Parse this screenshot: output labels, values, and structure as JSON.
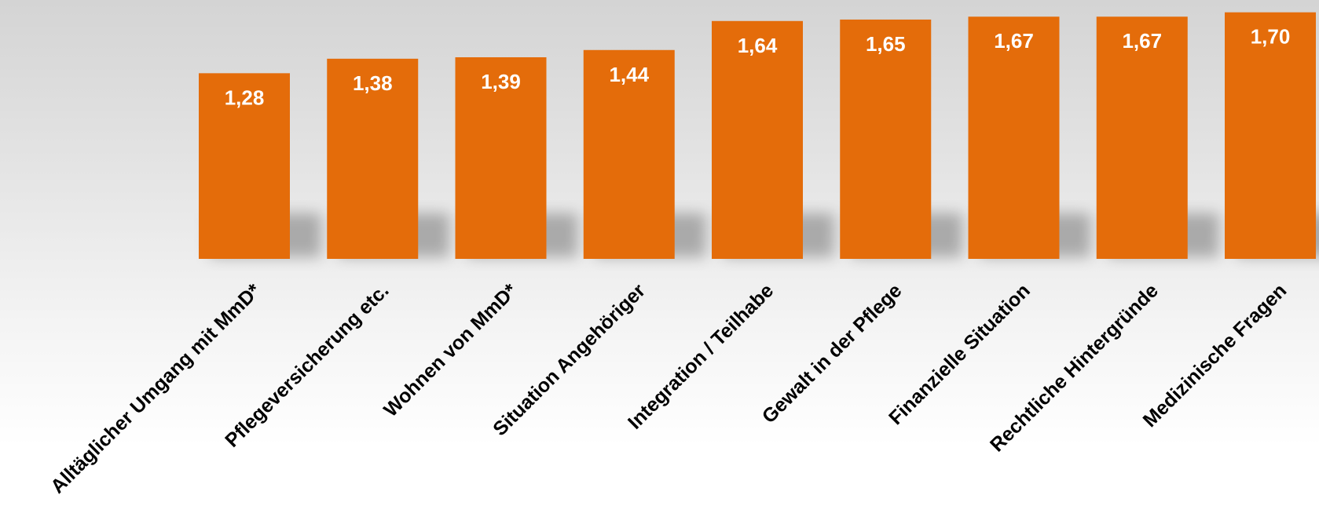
{
  "chart_data": {
    "type": "bar",
    "categories": [
      "Alltäglicher Umgang mit MmD*",
      "Pflegeversicherung etc.",
      "Wohnen von MmD*",
      "Situation Angehöriger",
      "Integration / Teilhabe",
      "Gewalt in der Pflege",
      "Finanzielle Situation",
      "Rechtliche Hintergründe",
      "Medizinische Fragen"
    ],
    "values": [
      1.28,
      1.38,
      1.39,
      1.44,
      1.64,
      1.65,
      1.67,
      1.67,
      1.7
    ],
    "value_labels": [
      "1,28",
      "1,38",
      "1,39",
      "1,44",
      "1,64",
      "1,65",
      "1,67",
      "1,67",
      "1,70"
    ],
    "title": "",
    "xlabel": "",
    "ylabel": "",
    "ylim": [
      0,
      1.72
    ],
    "grid": false,
    "legend": "none",
    "bar_color": "#e46c0a",
    "label_color": "#ffffff",
    "category_label_color": "#000000"
  }
}
